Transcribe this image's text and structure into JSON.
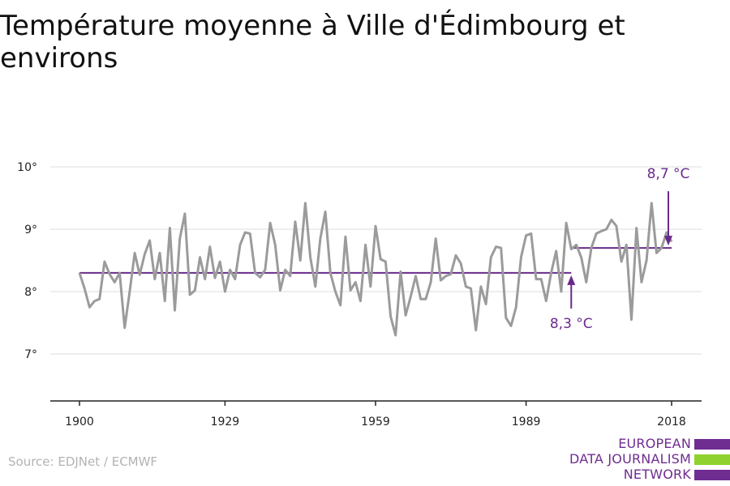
{
  "page": {
    "title": "Température moyenne à Ville d'Édimbourg et environs",
    "source": "Source: EDJNet / ECMWF",
    "logo_lines": [
      "EUROPEAN",
      "DATA JOURNALISM",
      "NETWORK"
    ]
  },
  "colors": {
    "series": "#9b9b9b",
    "mean": "#6a2a8c",
    "grid": "#dddddd",
    "axis": "#222222",
    "logo_purple": "#6f2c91",
    "logo_green": "#8fd12e"
  },
  "chart_data": {
    "type": "line",
    "title": "Température moyenne à Ville d'Édimbourg et environs",
    "xlabel": "",
    "ylabel": "",
    "xlim": [
      1900,
      2018
    ],
    "ylim": [
      6.2,
      10.5
    ],
    "x_ticks": [
      1900,
      1929,
      1959,
      1989,
      2018
    ],
    "x_tick_labels": [
      "1900",
      "1929",
      "1959",
      "1989",
      "2018"
    ],
    "y_ticks": [
      7,
      8,
      9,
      10
    ],
    "y_tick_labels": [
      "7°",
      "8°",
      "9°",
      "10°"
    ],
    "grid": true,
    "x": [
      1900,
      1901,
      1902,
      1903,
      1904,
      1905,
      1906,
      1907,
      1908,
      1909,
      1910,
      1911,
      1912,
      1913,
      1914,
      1915,
      1916,
      1917,
      1918,
      1919,
      1920,
      1921,
      1922,
      1923,
      1924,
      1925,
      1926,
      1927,
      1928,
      1929,
      1930,
      1931,
      1932,
      1933,
      1934,
      1935,
      1936,
      1937,
      1938,
      1939,
      1940,
      1941,
      1942,
      1943,
      1944,
      1945,
      1946,
      1947,
      1948,
      1949,
      1950,
      1951,
      1952,
      1953,
      1954,
      1955,
      1956,
      1957,
      1958,
      1959,
      1960,
      1961,
      1962,
      1963,
      1964,
      1965,
      1966,
      1967,
      1968,
      1969,
      1970,
      1971,
      1972,
      1973,
      1974,
      1975,
      1976,
      1977,
      1978,
      1979,
      1980,
      1981,
      1982,
      1983,
      1984,
      1985,
      1986,
      1987,
      1988,
      1989,
      1990,
      1991,
      1992,
      1993,
      1994,
      1995,
      1996,
      1997,
      1998,
      1999,
      2000,
      2001,
      2002,
      2003,
      2004,
      2005,
      2006,
      2007,
      2008,
      2009,
      2010,
      2011,
      2012,
      2013,
      2014,
      2015,
      2016,
      2017,
      2018
    ],
    "series": [
      {
        "values": [
          8.3,
          8.05,
          7.75,
          7.85,
          7.88,
          8.48,
          8.28,
          8.15,
          8.3,
          7.42,
          8.0,
          8.62,
          8.27,
          8.6,
          8.82,
          8.2,
          8.62,
          7.85,
          9.02,
          7.7,
          8.85,
          9.25,
          7.95,
          8.02,
          8.55,
          8.2,
          8.72,
          8.22,
          8.48,
          8.0,
          8.35,
          8.2,
          8.75,
          8.95,
          8.93,
          8.3,
          8.23,
          8.35,
          9.1,
          8.75,
          8.02,
          8.35,
          8.25,
          9.12,
          8.5,
          9.42,
          8.55,
          8.08,
          8.85,
          9.28,
          8.3,
          8.0,
          7.78,
          8.88,
          8.02,
          8.15,
          7.85,
          8.75,
          8.08,
          9.05,
          8.52,
          8.48,
          7.6,
          7.3,
          8.32,
          7.62,
          7.92,
          8.25,
          7.88,
          7.88,
          8.15,
          8.85,
          8.18,
          8.25,
          8.28,
          8.58,
          8.45,
          8.08,
          8.05,
          7.38,
          8.08,
          7.8,
          8.55,
          8.72,
          8.7,
          7.58,
          7.45,
          7.75,
          8.55,
          8.9,
          8.93,
          8.2,
          8.2,
          7.85,
          8.3,
          8.65,
          8.0,
          9.1,
          8.68,
          8.75,
          8.55,
          8.15,
          8.7,
          8.93,
          8.97,
          9.0,
          9.15,
          9.05,
          8.48,
          8.75,
          7.55,
          9.02,
          8.15,
          8.5,
          9.42,
          8.62,
          8.7,
          8.95,
          8.8
        ]
      }
    ],
    "annotations": [
      {
        "label": "8,3 °C",
        "value": 8.3,
        "x_start": 1900,
        "x_end": 1998
      },
      {
        "label": "8,7 °C",
        "value": 8.7,
        "x_start": 1998,
        "x_end": 2018
      }
    ]
  }
}
